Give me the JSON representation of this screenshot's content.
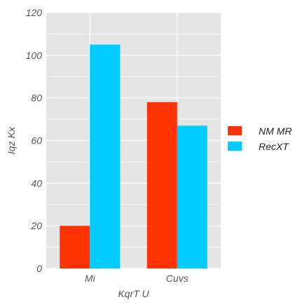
{
  "chart_data": {
    "type": "bar",
    "categories": [
      "Mi",
      "Cuvs"
    ],
    "series": [
      {
        "name": "NM MR",
        "values": [
          20,
          78
        ],
        "color": "#ff3300"
      },
      {
        "name": "RecXT",
        "values": [
          105,
          67
        ],
        "color": "#00ccff"
      }
    ],
    "xlabel": "KqrT U",
    "ylabel": "Iqz Kx",
    "ylim": [
      0,
      120
    ],
    "yticks": [
      0,
      20,
      40,
      60,
      80,
      100,
      120
    ],
    "grid": true,
    "legend_position": "right",
    "plot_background": "#e5e5e5",
    "grid_color": "#ffffff"
  }
}
